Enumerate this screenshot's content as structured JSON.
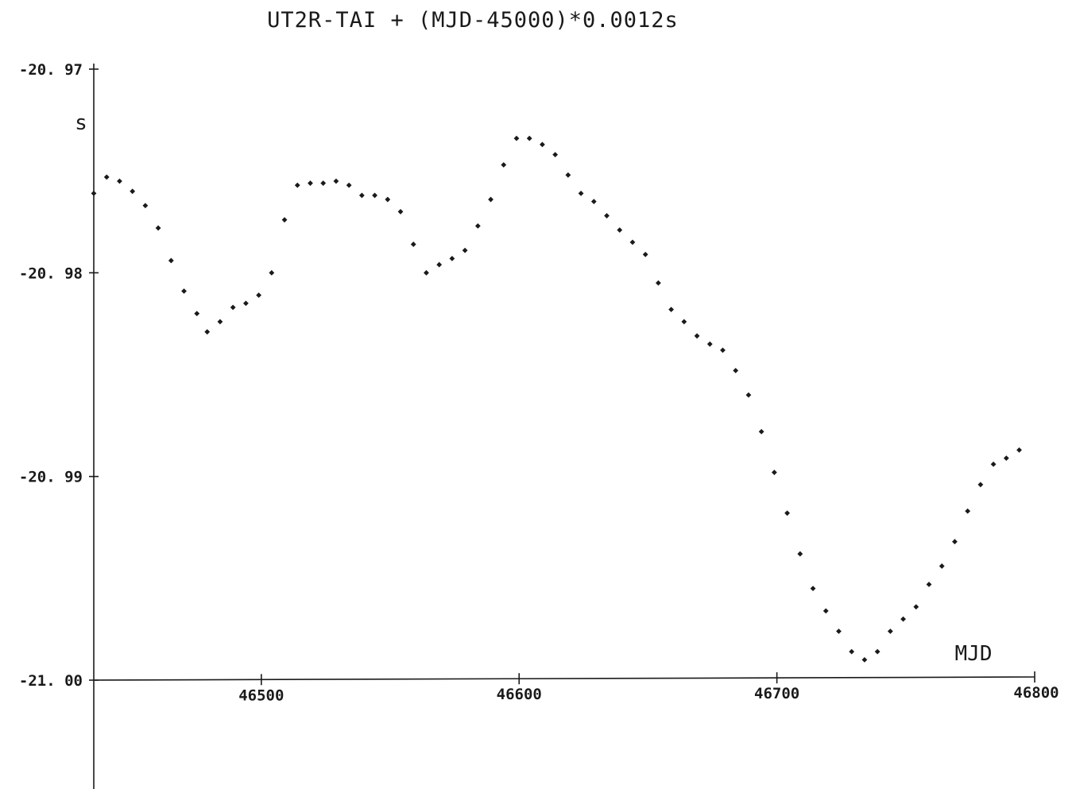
{
  "chart_data": {
    "type": "scatter",
    "title": "UT2R-TAI  +  (MJD-45000)*0.0012s",
    "xlabel": "MJD",
    "ylabel": "s",
    "xlim": [
      46435,
      46800
    ],
    "ylim": [
      -21.0,
      -20.97
    ],
    "x_ticks": [
      46500,
      46600,
      46700,
      46800
    ],
    "x_tick_labels": [
      "46500",
      "46600",
      "46700",
      "46800"
    ],
    "y_ticks": [
      -20.97,
      -20.98,
      -20.99,
      -21.0
    ],
    "y_tick_labels": [
      "-20. 97",
      "-20. 98",
      "-20. 99",
      "-21. 00"
    ],
    "grid": false,
    "series": [
      {
        "x": [
          46435,
          46440,
          46445,
          46450,
          46455,
          46460,
          46465,
          46470,
          46475,
          46479,
          46484,
          46489,
          46494,
          46499,
          46504,
          46509,
          46514,
          46519,
          46524,
          46529,
          46534,
          46539,
          46544,
          46549,
          46554,
          46559,
          46564,
          46569,
          46574,
          46579,
          46584,
          46589,
          46594,
          46599,
          46604,
          46609,
          46614,
          46619,
          46624,
          46629,
          46634,
          46639,
          46644,
          46649,
          46654,
          46659,
          46664,
          46669,
          46674,
          46679,
          46684,
          46689,
          46694,
          46699,
          46704,
          46709,
          46714,
          46719,
          46724,
          46729,
          46734,
          46739,
          46744,
          46749,
          46754,
          46759,
          46764,
          46769,
          46774,
          46779,
          46784,
          46789,
          46794
        ],
        "values": [
          -20.9761,
          -20.9753,
          -20.9755,
          -20.976,
          -20.9767,
          -20.9778,
          -20.9794,
          -20.9809,
          -20.982,
          -20.9829,
          -20.9824,
          -20.9817,
          -20.9815,
          -20.9811,
          -20.98,
          -20.9774,
          -20.9757,
          -20.9756,
          -20.9756,
          -20.9755,
          -20.9757,
          -20.9762,
          -20.9762,
          -20.9764,
          -20.977,
          -20.9786,
          -20.98,
          -20.9796,
          -20.9793,
          -20.9789,
          -20.9777,
          -20.9764,
          -20.9747,
          -20.9734,
          -20.9734,
          -20.9737,
          -20.9742,
          -20.9752,
          -20.9761,
          -20.9765,
          -20.9772,
          -20.9779,
          -20.9785,
          -20.9791,
          -20.9805,
          -20.9818,
          -20.9824,
          -20.9831,
          -20.9835,
          -20.9838,
          -20.9848,
          -20.986,
          -20.9878,
          -20.9898,
          -20.9918,
          -20.9938,
          -20.9955,
          -20.9966,
          -20.9976,
          -20.9986,
          -20.999,
          -20.9986,
          -20.9976,
          -20.997,
          -20.9964,
          -20.9953,
          -20.9944,
          -20.9932,
          -20.9917,
          -20.9904,
          -20.9894,
          -20.9891,
          -20.9887
        ]
      }
    ]
  }
}
